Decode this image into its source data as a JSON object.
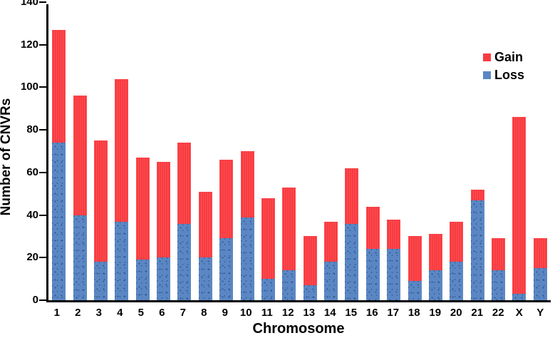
{
  "chart_data": {
    "type": "bar",
    "stacked": true,
    "title": "",
    "xlabel": "Chromosome",
    "ylabel": "Number of CNVRs",
    "ylim": [
      0,
      140
    ],
    "y_ticks": [
      0,
      20,
      40,
      60,
      80,
      100,
      120,
      140
    ],
    "grid": false,
    "legend_position": "upper-right",
    "categories": [
      "1",
      "2",
      "3",
      "4",
      "5",
      "6",
      "7",
      "8",
      "9",
      "10",
      "11",
      "12",
      "13",
      "14",
      "15",
      "16",
      "17",
      "18",
      "19",
      "20",
      "21",
      "22",
      "X",
      "Y"
    ],
    "series": [
      {
        "name": "Gain",
        "color": "#f93b40",
        "values": [
          53,
          56,
          57,
          67,
          48,
          45,
          38,
          31,
          37,
          31,
          38,
          39,
          23,
          19,
          26,
          20,
          14,
          21,
          17,
          19,
          5,
          15,
          83,
          14
        ]
      },
      {
        "name": "Loss",
        "color": "#5a87c4",
        "values": [
          74,
          40,
          18,
          37,
          19,
          20,
          36,
          20,
          29,
          39,
          10,
          14,
          7,
          18,
          36,
          24,
          24,
          9,
          14,
          18,
          47,
          14,
          3,
          15
        ]
      }
    ],
    "stack_totals": [
      127,
      96,
      75,
      104,
      67,
      65,
      74,
      51,
      66,
      70,
      48,
      53,
      30,
      37,
      62,
      44,
      38,
      30,
      31,
      37,
      52,
      29,
      86,
      29
    ]
  },
  "legend": {
    "items": [
      {
        "label": "Gain",
        "color": "#f93b40"
      },
      {
        "label": "Loss",
        "color": "#5a87c4"
      }
    ]
  },
  "colors": {
    "gain": "#f93b40",
    "loss": "#5a87c4",
    "axis": "#000000",
    "background": "#ffffff"
  }
}
